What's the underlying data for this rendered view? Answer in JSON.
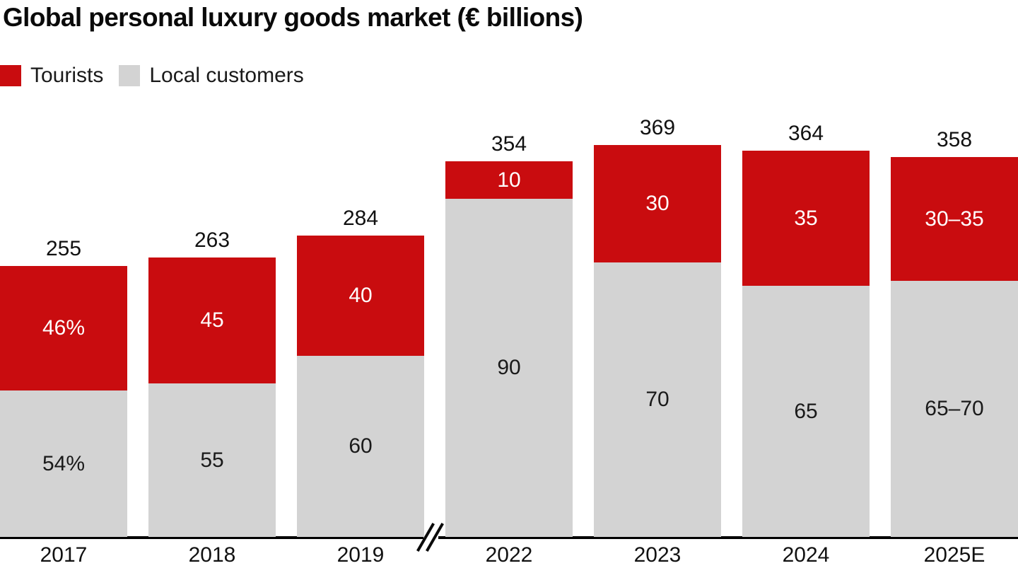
{
  "header": {
    "title": "Global personal luxury goods market (€ billions)"
  },
  "legend": {
    "items": [
      {
        "label": "Tourists",
        "color": "#c90c0f"
      },
      {
        "label": "Local customers",
        "color": "#d3d3d3"
      }
    ]
  },
  "chart_data": {
    "type": "bar",
    "variant": "stacked",
    "title": "Global personal luxury goods market (€ billions)",
    "unit": "€ billions",
    "categories": [
      "2017",
      "2018",
      "2019",
      "2022",
      "2023",
      "2024",
      "2025E"
    ],
    "totals": [
      255,
      263,
      284,
      354,
      369,
      364,
      358
    ],
    "total_labels": [
      "255",
      "263",
      "284",
      "354",
      "369",
      "364",
      "358"
    ],
    "series": [
      {
        "name": "Tourists",
        "color": "#c90c0f",
        "label_color": "#ffffff",
        "share_pct": [
          46,
          45,
          40,
          10,
          30,
          35,
          32.5
        ],
        "segment_labels": [
          "46%",
          "45",
          "40",
          "10",
          "30",
          "35",
          "30–35"
        ]
      },
      {
        "name": "Local customers",
        "color": "#d3d3d3",
        "label_color": "#1a1a1a",
        "share_pct": [
          54,
          55,
          60,
          90,
          70,
          65,
          67.5
        ],
        "segment_labels": [
          "54%",
          "55",
          "60",
          "90",
          "70",
          "65",
          "65–70"
        ]
      }
    ],
    "axis_break": {
      "after_category": "2019",
      "before_category": "2022",
      "symbol": "//"
    },
    "legend_position": "top-left",
    "grid": false,
    "y_axis_visible": false
  },
  "colors": {
    "axis": "#000000",
    "text": "#111111",
    "background": "#ffffff"
  }
}
